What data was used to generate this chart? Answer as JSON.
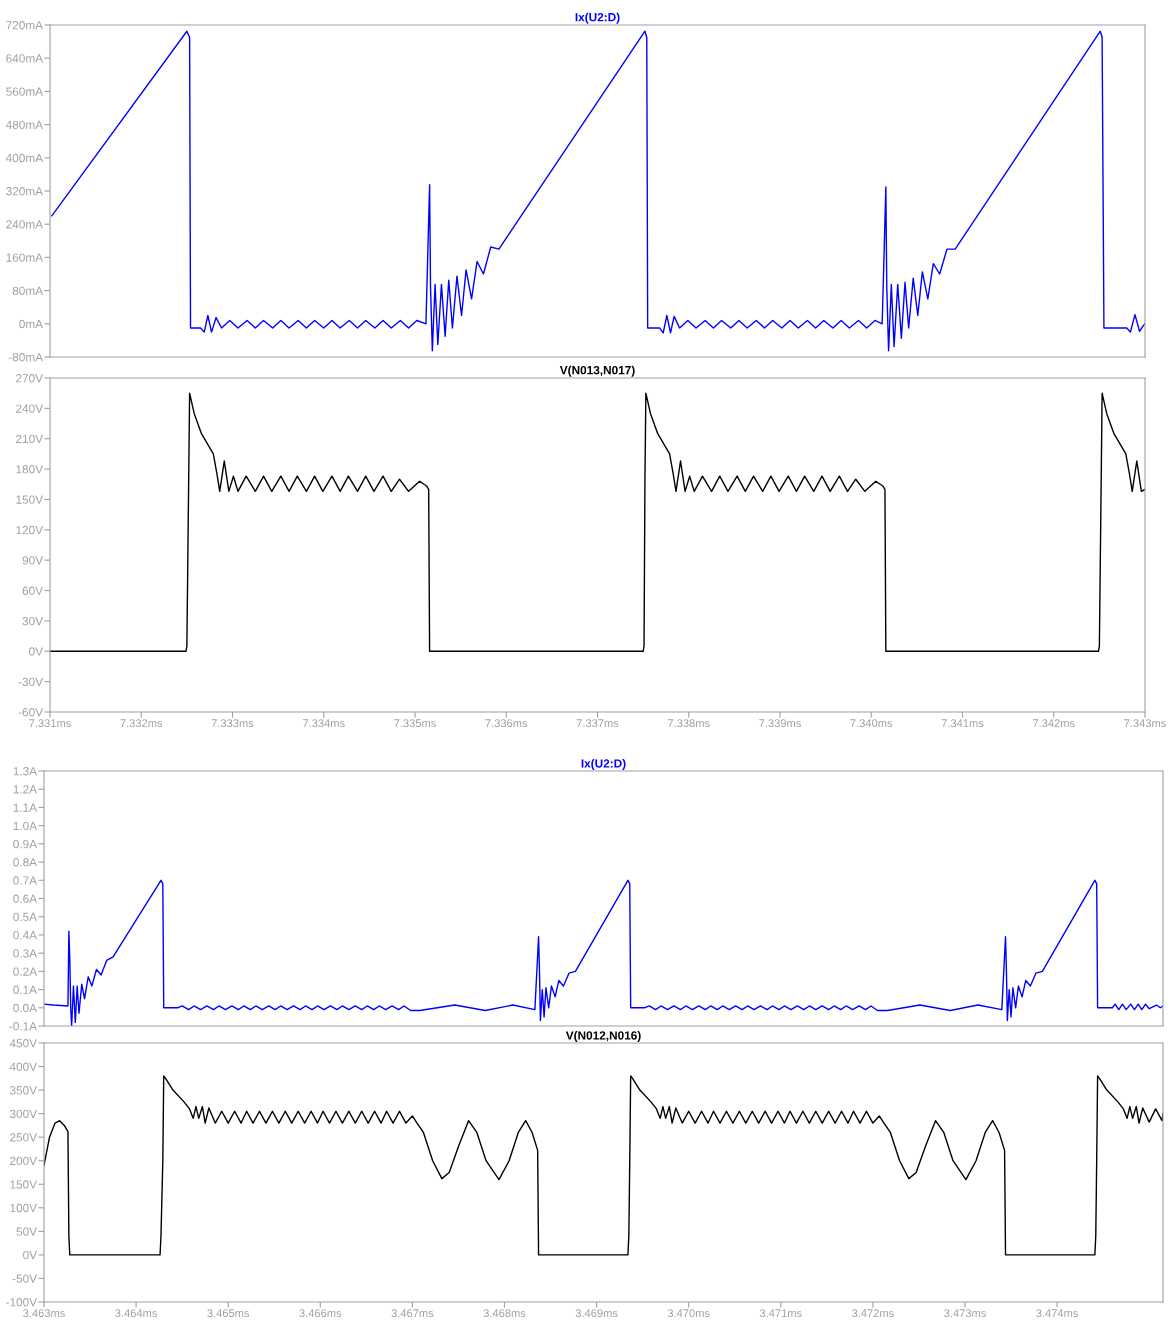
{
  "chart_data": [
    {
      "type": "line",
      "tick_labels": "y",
      "xlim": [
        7.331,
        7.343
      ],
      "ylim": [
        -80,
        720
      ],
      "yticks": [
        {
          "value": -80,
          "label": "-80mA"
        },
        {
          "value": 0,
          "label": "0mA"
        },
        {
          "value": 80,
          "label": "80mA"
        },
        {
          "value": 160,
          "label": "160mA"
        },
        {
          "value": 240,
          "label": "240mA"
        },
        {
          "value": 320,
          "label": "320mA"
        },
        {
          "value": 400,
          "label": "400mA"
        },
        {
          "value": 480,
          "label": "480mA"
        },
        {
          "value": 560,
          "label": "560mA"
        },
        {
          "value": 640,
          "label": "640mA"
        },
        {
          "value": 720,
          "label": "720mA"
        }
      ],
      "series": [
        {
          "name": "Ix(U2:D)",
          "color": "#0000ff",
          "x": [
            7.33102,
            7.3325,
            7.33253,
            7.33254,
            7.33265,
            7.33269,
            7.33273,
            7.33277,
            7.33282,
            7.33288,
            7.33297,
            7.33306,
            7.33316,
            7.33325,
            7.33334,
            7.33344,
            7.33353,
            7.33362,
            7.33372,
            7.33381,
            7.3339,
            7.334,
            7.33409,
            7.33418,
            7.33428,
            7.33437,
            7.33446,
            7.33456,
            7.33465,
            7.33474,
            7.33484,
            7.33493,
            7.33502,
            7.33512,
            7.33516,
            7.33517,
            7.33519,
            7.33522,
            7.33525,
            7.33529,
            7.33533,
            7.33537,
            7.33541,
            7.33546,
            7.33551,
            7.33556,
            7.33562,
            7.33568,
            7.33575,
            7.33583,
            7.33592,
            7.33752,
            7.33754,
            7.33755,
            7.33768,
            7.33772,
            7.33776,
            7.3378,
            7.33784,
            7.3379,
            7.33799,
            7.33808,
            7.33818,
            7.33827,
            7.33836,
            7.33846,
            7.33855,
            7.33864,
            7.33874,
            7.33883,
            7.33892,
            7.33902,
            7.33911,
            7.3392,
            7.3393,
            7.33939,
            7.33948,
            7.33958,
            7.33967,
            7.33976,
            7.33986,
            7.33995,
            7.34004,
            7.34012,
            7.34016,
            7.34017,
            7.34019,
            7.34022,
            7.34025,
            7.34029,
            7.34033,
            7.34037,
            7.34041,
            7.34046,
            7.34051,
            7.34056,
            7.34062,
            7.34068,
            7.34075,
            7.34083,
            7.34092,
            7.34251,
            7.34253,
            7.34255,
            7.3428,
            7.34284,
            7.34289,
            7.34294,
            7.34298,
            7.343
          ],
          "values": [
            260,
            705,
            690,
            -10,
            -10,
            -20,
            20,
            -20,
            15,
            -10,
            8,
            -10,
            8,
            -10,
            8,
            -10,
            8,
            -10,
            8,
            -10,
            8,
            -10,
            8,
            -10,
            8,
            -10,
            8,
            -10,
            8,
            -10,
            8,
            -10,
            8,
            0,
            335,
            90,
            -65,
            95,
            -50,
            95,
            -30,
            105,
            -10,
            115,
            20,
            130,
            60,
            150,
            120,
            185,
            180,
            705,
            690,
            -10,
            -10,
            -22,
            20,
            -22,
            18,
            -10,
            8,
            -10,
            8,
            -10,
            8,
            -10,
            8,
            -10,
            8,
            -10,
            8,
            -10,
            8,
            -10,
            8,
            -10,
            8,
            -10,
            8,
            -10,
            8,
            -10,
            8,
            0,
            330,
            90,
            -65,
            95,
            -55,
            95,
            -35,
            100,
            -10,
            110,
            20,
            125,
            60,
            145,
            120,
            180,
            180,
            705,
            690,
            -10,
            -10,
            -20,
            22,
            -18,
            -5,
            0
          ]
        }
      ]
    },
    {
      "type": "line",
      "xlim": [
        7.331,
        7.343
      ],
      "xticks": [
        {
          "value": 7.331,
          "label": "7.331ms"
        },
        {
          "value": 7.332,
          "label": "7.332ms"
        },
        {
          "value": 7.333,
          "label": "7.333ms"
        },
        {
          "value": 7.334,
          "label": "7.334ms"
        },
        {
          "value": 7.335,
          "label": "7.335ms"
        },
        {
          "value": 7.336,
          "label": "7.336ms"
        },
        {
          "value": 7.337,
          "label": "7.337ms"
        },
        {
          "value": 7.338,
          "label": "7.338ms"
        },
        {
          "value": 7.339,
          "label": "7.339ms"
        },
        {
          "value": 7.34,
          "label": "7.340ms"
        },
        {
          "value": 7.341,
          "label": "7.341ms"
        },
        {
          "value": 7.342,
          "label": "7.342ms"
        },
        {
          "value": 7.343,
          "label": "7.343ms"
        }
      ],
      "ylim": [
        -60,
        270
      ],
      "yticks": [
        {
          "value": -60,
          "label": "-60V"
        },
        {
          "value": -30,
          "label": "-30V"
        },
        {
          "value": 0,
          "label": "0V"
        },
        {
          "value": 30,
          "label": "30V"
        },
        {
          "value": 60,
          "label": "60V"
        },
        {
          "value": 90,
          "label": "90V"
        },
        {
          "value": 120,
          "label": "120V"
        },
        {
          "value": 150,
          "label": "150V"
        },
        {
          "value": 180,
          "label": "180V"
        },
        {
          "value": 210,
          "label": "210V"
        },
        {
          "value": 240,
          "label": "240V"
        },
        {
          "value": 270,
          "label": "270V"
        }
      ],
      "series": [
        {
          "name": "V(N013,N017)",
          "color": "#000000",
          "x": [
            7.331,
            7.33249,
            7.3325,
            7.33252,
            7.33253,
            7.33258,
            7.33266,
            7.33279,
            7.33283,
            7.33286,
            7.33291,
            7.33296,
            7.33301,
            7.33306,
            7.33315,
            7.33325,
            7.33334,
            7.33343,
            7.33353,
            7.33362,
            7.33371,
            7.33381,
            7.3339,
            7.33399,
            7.33409,
            7.33418,
            7.33427,
            7.33437,
            7.33446,
            7.33455,
            7.33465,
            7.33474,
            7.33483,
            7.33493,
            7.33505,
            7.33513,
            7.33515,
            7.33516,
            7.3375,
            7.33751,
            7.33752,
            7.33753,
            7.33758,
            7.33766,
            7.33779,
            7.33783,
            7.33786,
            7.33791,
            7.33796,
            7.33801,
            7.33806,
            7.33815,
            7.33825,
            7.33834,
            7.33843,
            7.33853,
            7.33862,
            7.33871,
            7.33881,
            7.3389,
            7.33899,
            7.33909,
            7.33918,
            7.33927,
            7.33937,
            7.33946,
            7.33955,
            7.33965,
            7.33974,
            7.33983,
            7.33993,
            7.34005,
            7.34013,
            7.34015,
            7.34016,
            7.34249,
            7.3425,
            7.34252,
            7.34253,
            7.34258,
            7.34266,
            7.34279,
            7.34283,
            7.34286,
            7.34291,
            7.34296,
            7.343
          ],
          "values": [
            0,
            0,
            5,
            170,
            255,
            235,
            215,
            195,
            175,
            158,
            188,
            158,
            173,
            158,
            173,
            158,
            173,
            158,
            173,
            158,
            173,
            158,
            173,
            158,
            173,
            158,
            173,
            158,
            173,
            158,
            173,
            158,
            170,
            158,
            168,
            163,
            160,
            0,
            0,
            5,
            170,
            255,
            235,
            215,
            195,
            175,
            158,
            188,
            158,
            173,
            158,
            173,
            158,
            173,
            158,
            173,
            158,
            173,
            158,
            173,
            158,
            173,
            158,
            173,
            158,
            173,
            158,
            173,
            158,
            170,
            158,
            168,
            163,
            160,
            0,
            0,
            5,
            170,
            255,
            235,
            215,
            195,
            175,
            158,
            188,
            158,
            160
          ]
        }
      ]
    },
    {
      "type": "line",
      "tick_labels": "y",
      "xlim": [
        3.463,
        3.47515
      ],
      "ylim": [
        -0.1,
        1.3
      ],
      "yticks": [
        {
          "value": -0.1,
          "label": "-0.1A"
        },
        {
          "value": 0,
          "label": "0.0A"
        },
        {
          "value": 0.1,
          "label": "0.1A"
        },
        {
          "value": 0.2,
          "label": "0.2A"
        },
        {
          "value": 0.3,
          "label": "0.3A"
        },
        {
          "value": 0.4,
          "label": "0.4A"
        },
        {
          "value": 0.5,
          "label": "0.5A"
        },
        {
          "value": 0.6,
          "label": "0.6A"
        },
        {
          "value": 0.7,
          "label": "0.7A"
        },
        {
          "value": 0.8,
          "label": "0.8A"
        },
        {
          "value": 0.9,
          "label": "0.9A"
        },
        {
          "value": 1.0,
          "label": "1.0A"
        },
        {
          "value": 1.1,
          "label": "1.1A"
        },
        {
          "value": 1.2,
          "label": "1.2A"
        },
        {
          "value": 1.3,
          "label": "1.3A"
        }
      ],
      "series": [
        {
          "name": "Ix(U2:D)",
          "color": "#0000ff",
          "x": [
            3.463,
            3.4631,
            3.46326,
            3.46327,
            3.46328,
            3.46329,
            3.4633,
            3.46332,
            3.46334,
            3.46336,
            3.46338,
            3.46341,
            3.46344,
            3.46348,
            3.46352,
            3.46357,
            3.46362,
            3.46368,
            3.46375,
            3.46427,
            3.46429,
            3.4643,
            3.46445,
            3.4645,
            3.46457,
            3.46463,
            3.4647,
            3.46477,
            3.46484,
            3.4649,
            3.46497,
            3.46504,
            3.46511,
            3.46517,
            3.46524,
            3.4653,
            3.46537,
            3.46544,
            3.46551,
            3.46557,
            3.46564,
            3.46571,
            3.46578,
            3.46584,
            3.46591,
            3.46597,
            3.46604,
            3.46611,
            3.46618,
            3.46624,
            3.46631,
            3.46638,
            3.46645,
            3.46651,
            3.46658,
            3.46664,
            3.46671,
            3.46678,
            3.46685,
            3.46691,
            3.46698,
            3.46708,
            3.46746,
            3.46779,
            3.46809,
            3.46833,
            3.46837,
            3.46838,
            3.46839,
            3.46841,
            3.46843,
            3.46845,
            3.46848,
            3.46851,
            3.46855,
            3.46859,
            3.46864,
            3.4687,
            3.46877,
            3.46934,
            3.46936,
            3.46937,
            3.46952,
            3.46957,
            3.46964,
            3.4697,
            3.46977,
            3.46984,
            3.46991,
            3.46997,
            3.47004,
            3.47011,
            3.47018,
            3.47024,
            3.47031,
            3.47037,
            3.47044,
            3.47051,
            3.47058,
            3.47064,
            3.47071,
            3.47078,
            3.47085,
            3.47091,
            3.47098,
            3.47104,
            3.47111,
            3.47118,
            3.47125,
            3.47131,
            3.47138,
            3.47145,
            3.47152,
            3.47158,
            3.47165,
            3.47171,
            3.47178,
            3.47185,
            3.47192,
            3.47198,
            3.47205,
            3.47216,
            3.47251,
            3.47284,
            3.47314,
            3.4734,
            3.47344,
            3.47345,
            3.47346,
            3.47348,
            3.4735,
            3.47352,
            3.47355,
            3.47358,
            3.47362,
            3.47366,
            3.47371,
            3.47377,
            3.47384,
            3.47441,
            3.47443,
            3.47444,
            3.4746,
            3.47463,
            3.47467,
            3.47471,
            3.47475,
            3.4748,
            3.47484,
            3.47488,
            3.47492,
            3.47496,
            3.475,
            3.47508,
            3.47512,
            3.47515
          ],
          "values": [
            0.02,
            0.015,
            0.01,
            0.42,
            0.27,
            0.0,
            -0.1,
            0.12,
            -0.08,
            0.12,
            -0.03,
            0.13,
            0.05,
            0.17,
            0.12,
            0.21,
            0.18,
            0.26,
            0.28,
            0.7,
            0.68,
            0.0,
            0.0,
            0.01,
            -0.01,
            0.01,
            -0.01,
            0.01,
            -0.01,
            0.01,
            -0.01,
            0.01,
            -0.01,
            0.01,
            -0.01,
            0.01,
            -0.01,
            0.01,
            -0.01,
            0.01,
            -0.01,
            0.01,
            -0.01,
            0.01,
            -0.01,
            0.01,
            -0.01,
            0.01,
            -0.01,
            0.01,
            -0.01,
            0.01,
            -0.01,
            0.01,
            -0.01,
            0.01,
            -0.01,
            0.01,
            -0.01,
            0.01,
            -0.015,
            -0.015,
            0.015,
            -0.015,
            0.015,
            -0.01,
            0.39,
            0.2,
            -0.07,
            0.1,
            -0.05,
            0.11,
            0.0,
            0.12,
            0.06,
            0.15,
            0.12,
            0.19,
            0.2,
            0.7,
            0.68,
            0.0,
            0.0,
            0.01,
            -0.01,
            0.01,
            -0.01,
            0.01,
            -0.01,
            0.01,
            -0.01,
            0.01,
            -0.01,
            0.01,
            -0.01,
            0.01,
            -0.01,
            0.01,
            -0.01,
            0.01,
            -0.01,
            0.01,
            -0.01,
            0.01,
            -0.01,
            0.01,
            -0.01,
            0.01,
            -0.01,
            0.01,
            -0.01,
            0.01,
            -0.01,
            0.01,
            -0.01,
            0.01,
            -0.01,
            0.01,
            -0.01,
            0.01,
            -0.015,
            -0.015,
            0.015,
            -0.015,
            0.015,
            -0.01,
            0.39,
            0.2,
            -0.07,
            0.1,
            -0.05,
            0.11,
            0.0,
            0.12,
            0.06,
            0.15,
            0.12,
            0.19,
            0.2,
            0.7,
            0.68,
            0.0,
            0.0,
            0.02,
            -0.01,
            0.02,
            -0.01,
            0.02,
            -0.01,
            0.02,
            -0.01,
            0.02,
            -0.005,
            0.015,
            0.0,
            0.01
          ]
        }
      ]
    },
    {
      "type": "line",
      "xlim": [
        3.463,
        3.47515
      ],
      "xticks": [
        {
          "value": 3.463,
          "label": "3.463ms"
        },
        {
          "value": 3.464,
          "label": "3.464ms"
        },
        {
          "value": 3.465,
          "label": "3.465ms"
        },
        {
          "value": 3.466,
          "label": "3.466ms"
        },
        {
          "value": 3.467,
          "label": "3.467ms"
        },
        {
          "value": 3.468,
          "label": "3.468ms"
        },
        {
          "value": 3.469,
          "label": "3.469ms"
        },
        {
          "value": 3.47,
          "label": "3.470ms"
        },
        {
          "value": 3.471,
          "label": "3.471ms"
        },
        {
          "value": 3.472,
          "label": "3.472ms"
        },
        {
          "value": 3.473,
          "label": "3.473ms"
        },
        {
          "value": 3.474,
          "label": "3.474ms"
        }
      ],
      "ylim": [
        -100,
        450
      ],
      "yticks": [
        {
          "value": -100,
          "label": "-100V"
        },
        {
          "value": -50,
          "label": "-50V"
        },
        {
          "value": 0,
          "label": "0V"
        },
        {
          "value": 50,
          "label": "50V"
        },
        {
          "value": 100,
          "label": "100V"
        },
        {
          "value": 150,
          "label": "150V"
        },
        {
          "value": 200,
          "label": "200V"
        },
        {
          "value": 250,
          "label": "250V"
        },
        {
          "value": 300,
          "label": "300V"
        },
        {
          "value": 350,
          "label": "350V"
        },
        {
          "value": 400,
          "label": "400V"
        },
        {
          "value": 450,
          "label": "450V"
        }
      ],
      "series": [
        {
          "name": "V(N012,N016)",
          "color": "#000000",
          "x": [
            3.463,
            3.46306,
            3.46312,
            3.46317,
            3.46322,
            3.46326,
            3.46327,
            3.46328,
            3.46426,
            3.46427,
            3.46429,
            3.4643,
            3.46432,
            3.4644,
            3.46452,
            3.46458,
            3.46462,
            3.46465,
            3.46468,
            3.46472,
            3.46475,
            3.46479,
            3.46486,
            3.46493,
            3.465,
            3.46507,
            3.46514,
            3.4652,
            3.46527,
            3.46534,
            3.46541,
            3.46548,
            3.46555,
            3.46562,
            3.46569,
            3.46576,
            3.46583,
            3.4659,
            3.46597,
            3.46603,
            3.4661,
            3.46617,
            3.46624,
            3.46631,
            3.46638,
            3.46645,
            3.46652,
            3.46659,
            3.46666,
            3.46672,
            3.46679,
            3.46686,
            3.46693,
            3.467,
            3.46705,
            3.46712,
            3.46722,
            3.46732,
            3.4674,
            3.4675,
            3.46761,
            3.4677,
            3.4678,
            3.46794,
            3.46805,
            3.46815,
            3.46823,
            3.4683,
            3.46836,
            3.46837,
            3.46934,
            3.46935,
            3.46936,
            3.46937,
            3.46939,
            3.46947,
            3.46959,
            3.46965,
            3.46969,
            3.46972,
            3.46975,
            3.46979,
            3.46982,
            3.46986,
            3.46993,
            3.47,
            3.47007,
            3.47014,
            3.47021,
            3.47027,
            3.47034,
            3.47041,
            3.47048,
            3.47055,
            3.47062,
            3.47069,
            3.47076,
            3.47083,
            3.4709,
            3.47097,
            3.47104,
            3.4711,
            3.47117,
            3.47124,
            3.47131,
            3.47138,
            3.47145,
            3.47152,
            3.47159,
            3.47166,
            3.47173,
            3.47179,
            3.47186,
            3.47193,
            3.472,
            3.47207,
            3.47212,
            3.47219,
            3.47229,
            3.47239,
            3.47247,
            3.47257,
            3.47268,
            3.47277,
            3.47287,
            3.47301,
            3.47312,
            3.47322,
            3.4733,
            3.47337,
            3.47343,
            3.47344,
            3.47441,
            3.47442,
            3.47443,
            3.47444,
            3.47446,
            3.47454,
            3.47466,
            3.47472,
            3.47476,
            3.47479,
            3.47482,
            3.47486,
            3.47489,
            3.47493,
            3.475,
            3.47507,
            3.47514,
            3.47515
          ],
          "values": [
            190,
            250,
            280,
            285,
            275,
            262,
            40,
            0,
            0,
            40,
            200,
            380,
            375,
            350,
            325,
            310,
            290,
            315,
            290,
            315,
            280,
            312,
            280,
            305,
            280,
            305,
            280,
            305,
            280,
            305,
            280,
            305,
            280,
            305,
            280,
            305,
            280,
            305,
            280,
            305,
            280,
            305,
            280,
            305,
            280,
            305,
            280,
            305,
            280,
            305,
            280,
            305,
            280,
            295,
            280,
            260,
            200,
            162,
            175,
            230,
            285,
            260,
            200,
            160,
            200,
            260,
            285,
            260,
            222,
            0,
            0,
            40,
            200,
            380,
            375,
            350,
            325,
            310,
            290,
            315,
            290,
            315,
            280,
            312,
            280,
            305,
            280,
            305,
            280,
            305,
            280,
            305,
            280,
            305,
            280,
            305,
            280,
            305,
            280,
            305,
            280,
            305,
            280,
            305,
            280,
            305,
            280,
            305,
            280,
            305,
            280,
            305,
            280,
            305,
            280,
            295,
            280,
            260,
            200,
            162,
            175,
            230,
            285,
            260,
            200,
            160,
            200,
            260,
            285,
            260,
            222,
            0,
            0,
            40,
            200,
            380,
            375,
            350,
            325,
            310,
            290,
            315,
            290,
            315,
            280,
            312,
            282,
            310,
            285,
            300
          ]
        }
      ]
    }
  ]
}
